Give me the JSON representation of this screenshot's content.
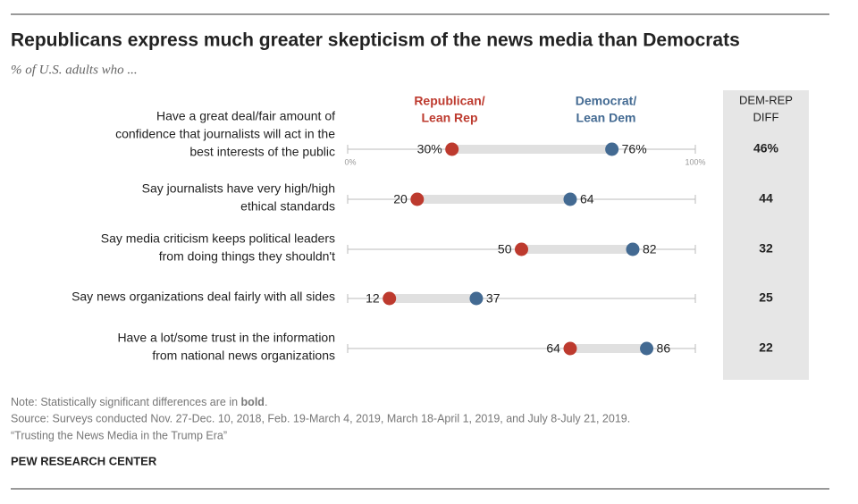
{
  "chart_data": {
    "type": "dot",
    "title": "Republicans express much greater skepticism of the news media than Democrats",
    "subtitle": "% of U.S. adults who ...",
    "categories": [
      [
        "Have a great deal/fair amount of",
        "confidence that journalists will act in the",
        "best interests of the public"
      ],
      [
        "Say journalists have very high/high",
        "ethical standards"
      ],
      [
        "Say media criticism keeps political leaders",
        "from doing things they shouldn't"
      ],
      [
        "Say news organizations deal fairly with all sides"
      ],
      [
        "Have a lot/some trust in the information",
        "from national news organizations"
      ]
    ],
    "series": [
      {
        "name": [
          "Republican/",
          "Lean Rep"
        ],
        "color": "#bd3a2e",
        "values": [
          30,
          20,
          50,
          12,
          64
        ],
        "value_labels": [
          "30%",
          "20",
          "50",
          "12",
          "64"
        ]
      },
      {
        "name": [
          "Democrat/",
          "Lean Dem"
        ],
        "color": "#436a92",
        "values": [
          76,
          64,
          82,
          37,
          86
        ],
        "value_labels": [
          "76%",
          "64",
          "82",
          "37",
          "86"
        ]
      }
    ],
    "xlim": [
      0,
      100
    ],
    "xticks": [
      {
        "value": 0,
        "label": "0%"
      },
      {
        "value": 100,
        "label": "100%"
      }
    ],
    "diff": {
      "title": [
        "DEM-REP",
        "DIFF"
      ],
      "values": [
        46,
        44,
        32,
        25,
        22
      ],
      "value_labels": [
        "46%",
        "44",
        "32",
        "25",
        "22"
      ]
    },
    "note": [
      "Note: Statistically significant differences are in ",
      "bold",
      "."
    ],
    "source": "Source: Surveys conducted Nov. 27-Dec. 10, 2018, Feb. 19-March 4, 2019, March 18-April 1, 2019, and July 8-July 21, 2019.",
    "report": "“Trusting the News Media in the Trump Era”",
    "credit": "PEW RESEARCH CENTER"
  }
}
